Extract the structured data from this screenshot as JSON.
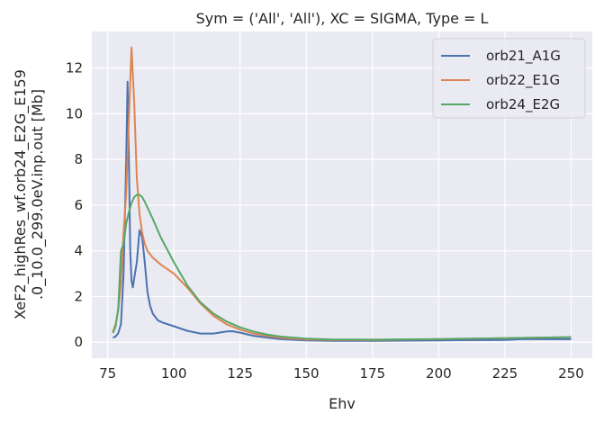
{
  "chart_data": {
    "type": "line",
    "title": "Sym = ('All', 'All'), XC = SIGMA, Type = L",
    "xlabel": "Ehv",
    "ylabel_lines": [
      "XeF2_highRes_wf.orb24_E2G_E159",
      ".0_10.0_299.0eV.inp.out [Mb]"
    ],
    "xlim": [
      69,
      258
    ],
    "ylim": [
      -0.7,
      13.6
    ],
    "xticks": [
      75,
      100,
      125,
      150,
      175,
      200,
      225,
      250
    ],
    "yticks": [
      0,
      2,
      4,
      6,
      8,
      10,
      12
    ],
    "grid": true,
    "legend_position": "top-right",
    "series": [
      {
        "name": "orb21_A1G",
        "color": "#4c72b0",
        "points": [
          [
            77,
            0.2
          ],
          [
            78,
            0.25
          ],
          [
            79,
            0.4
          ],
          [
            80,
            0.8
          ],
          [
            81,
            3.0
          ],
          [
            82,
            8.0
          ],
          [
            82.5,
            11.4
          ],
          [
            83,
            8.0
          ],
          [
            83.5,
            4.0
          ],
          [
            84,
            2.7
          ],
          [
            84.5,
            2.4
          ],
          [
            85,
            2.8
          ],
          [
            86,
            3.5
          ],
          [
            87,
            4.9
          ],
          [
            88,
            4.6
          ],
          [
            89,
            3.5
          ],
          [
            90,
            2.2
          ],
          [
            91,
            1.6
          ],
          [
            92,
            1.25
          ],
          [
            94,
            0.95
          ],
          [
            96,
            0.85
          ],
          [
            100,
            0.7
          ],
          [
            105,
            0.5
          ],
          [
            110,
            0.38
          ],
          [
            115,
            0.38
          ],
          [
            120,
            0.47
          ],
          [
            122,
            0.48
          ],
          [
            125,
            0.42
          ],
          [
            130,
            0.28
          ],
          [
            140,
            0.14
          ],
          [
            150,
            0.08
          ],
          [
            160,
            0.06
          ],
          [
            175,
            0.06
          ],
          [
            200,
            0.08
          ],
          [
            225,
            0.1
          ],
          [
            232,
            0.14
          ],
          [
            240,
            0.13
          ],
          [
            250,
            0.13
          ]
        ]
      },
      {
        "name": "orb22_E1G",
        "color": "#dd8452",
        "points": [
          [
            77,
            0.45
          ],
          [
            78,
            0.8
          ],
          [
            79,
            1.4
          ],
          [
            80,
            2.6
          ],
          [
            81,
            4.8
          ],
          [
            82,
            6.5
          ],
          [
            83,
            9.8
          ],
          [
            84,
            12.9
          ],
          [
            85,
            10.5
          ],
          [
            86,
            7.2
          ],
          [
            87,
            5.6
          ],
          [
            88,
            4.8
          ],
          [
            89,
            4.3
          ],
          [
            90,
            4.0
          ],
          [
            92,
            3.7
          ],
          [
            95,
            3.4
          ],
          [
            100,
            3.0
          ],
          [
            105,
            2.4
          ],
          [
            110,
            1.7
          ],
          [
            115,
            1.15
          ],
          [
            120,
            0.78
          ],
          [
            125,
            0.55
          ],
          [
            130,
            0.38
          ],
          [
            140,
            0.2
          ],
          [
            150,
            0.12
          ],
          [
            160,
            0.1
          ],
          [
            175,
            0.1
          ],
          [
            200,
            0.13
          ],
          [
            225,
            0.18
          ],
          [
            250,
            0.22
          ]
        ]
      },
      {
        "name": "orb24_E2G",
        "color": "#55a868",
        "points": [
          [
            77,
            0.4
          ],
          [
            78,
            0.7
          ],
          [
            79,
            1.5
          ],
          [
            80,
            4.0
          ],
          [
            81,
            4.3
          ],
          [
            82,
            5.2
          ],
          [
            83,
            5.7
          ],
          [
            84,
            6.1
          ],
          [
            85,
            6.35
          ],
          [
            86,
            6.45
          ],
          [
            87,
            6.45
          ],
          [
            88,
            6.35
          ],
          [
            89,
            6.15
          ],
          [
            90,
            5.9
          ],
          [
            92,
            5.4
          ],
          [
            95,
            4.6
          ],
          [
            100,
            3.5
          ],
          [
            105,
            2.5
          ],
          [
            110,
            1.75
          ],
          [
            115,
            1.25
          ],
          [
            120,
            0.9
          ],
          [
            125,
            0.65
          ],
          [
            130,
            0.47
          ],
          [
            135,
            0.34
          ],
          [
            140,
            0.25
          ],
          [
            150,
            0.16
          ],
          [
            160,
            0.12
          ],
          [
            175,
            0.11
          ],
          [
            200,
            0.14
          ],
          [
            225,
            0.18
          ],
          [
            250,
            0.22
          ]
        ]
      }
    ]
  }
}
